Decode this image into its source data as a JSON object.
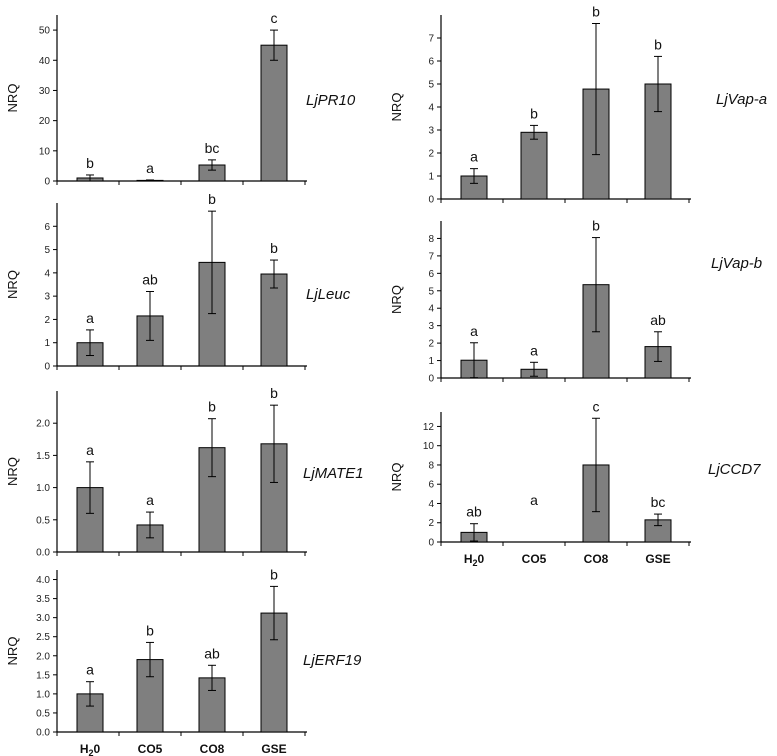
{
  "chart_data": [
    {
      "type": "bar",
      "title": "LjPR10",
      "ylabel": "NRQ",
      "categories": [
        "H20",
        "CO5",
        "CO8",
        "GSE"
      ],
      "values": [
        1.0,
        0.2,
        5.3,
        45.0
      ],
      "errors": [
        1.0,
        0.15,
        1.7,
        5.0
      ],
      "significance": [
        "b",
        "a",
        "bc",
        "c"
      ],
      "ylim": [
        0,
        55
      ],
      "yticks": [
        "0",
        "10",
        "20",
        "30",
        "40",
        "50"
      ]
    },
    {
      "type": "bar",
      "title": "LjLeuc",
      "ylabel": "NRQ",
      "categories": [
        "H20",
        "CO5",
        "CO8",
        "GSE"
      ],
      "values": [
        1.0,
        2.15,
        4.45,
        3.95
      ],
      "errors": [
        0.55,
        1.05,
        2.2,
        0.6
      ],
      "significance": [
        "a",
        "ab",
        "b",
        "b"
      ],
      "ylim": [
        0,
        7
      ],
      "yticks": [
        "0",
        "1",
        "2",
        "3",
        "4",
        "5",
        "6"
      ]
    },
    {
      "type": "bar",
      "title": "LjMATE1",
      "ylabel": "NRQ",
      "categories": [
        "H20",
        "CO5",
        "CO8",
        "GSE"
      ],
      "values": [
        1.0,
        0.42,
        1.62,
        1.68
      ],
      "errors": [
        0.4,
        0.2,
        0.45,
        0.6
      ],
      "significance": [
        "a",
        "a",
        "b",
        "b"
      ],
      "ylim": [
        0,
        2.5
      ],
      "yticks": [
        "0.0",
        "0.5",
        "1.0",
        "1.5",
        "2.0"
      ]
    },
    {
      "type": "bar",
      "title": "LjERF19",
      "ylabel": "NRQ",
      "categories": [
        "H20",
        "CO5",
        "CO8",
        "GSE"
      ],
      "values": [
        1.0,
        1.9,
        1.42,
        3.12
      ],
      "errors": [
        0.32,
        0.45,
        0.33,
        0.7
      ],
      "significance": [
        "a",
        "b",
        "ab",
        "b"
      ],
      "ylim": [
        0,
        4.25
      ],
      "yticks": [
        "0.0",
        "0.5",
        "1.0",
        "1.5",
        "2.0",
        "2.5",
        "3.0",
        "3.5",
        "4.0"
      ]
    },
    {
      "type": "bar",
      "title": "LjVap-a",
      "ylabel": "NRQ",
      "categories": [
        "H20",
        "CO5",
        "CO8",
        "GSE"
      ],
      "values": [
        1.0,
        2.9,
        4.78,
        5.0
      ],
      "errors": [
        0.32,
        0.3,
        2.85,
        1.2
      ],
      "significance": [
        "a",
        "b",
        "b",
        "b"
      ],
      "ylim": [
        0,
        8
      ],
      "yticks": [
        "0",
        "1",
        "2",
        "3",
        "4",
        "5",
        "6",
        "7"
      ]
    },
    {
      "type": "bar",
      "title": "LjVap-b",
      "ylabel": "NRQ",
      "categories": [
        "H20",
        "CO5",
        "CO8",
        "GSE"
      ],
      "values": [
        1.02,
        0.5,
        5.35,
        1.8
      ],
      "errors": [
        1.0,
        0.4,
        2.7,
        0.85
      ],
      "significance": [
        "a",
        "a",
        "b",
        "ab"
      ],
      "ylim": [
        0,
        9
      ],
      "yticks": [
        "0",
        "1",
        "2",
        "3",
        "4",
        "5",
        "6",
        "7",
        "8"
      ]
    },
    {
      "type": "bar",
      "title": "LjCCD7",
      "ylabel": "NRQ",
      "categories": [
        "H20",
        "CO5",
        "CO8",
        "GSE"
      ],
      "values": [
        1.0,
        0.0,
        8.0,
        2.3
      ],
      "errors": [
        0.9,
        0.0,
        4.85,
        0.6
      ],
      "significance": [
        "ab",
        "a",
        "c",
        "bc"
      ],
      "ylim": [
        0,
        13.5
      ],
      "yticks": [
        "0",
        "2",
        "4",
        "6",
        "8",
        "10",
        "12"
      ]
    }
  ]
}
